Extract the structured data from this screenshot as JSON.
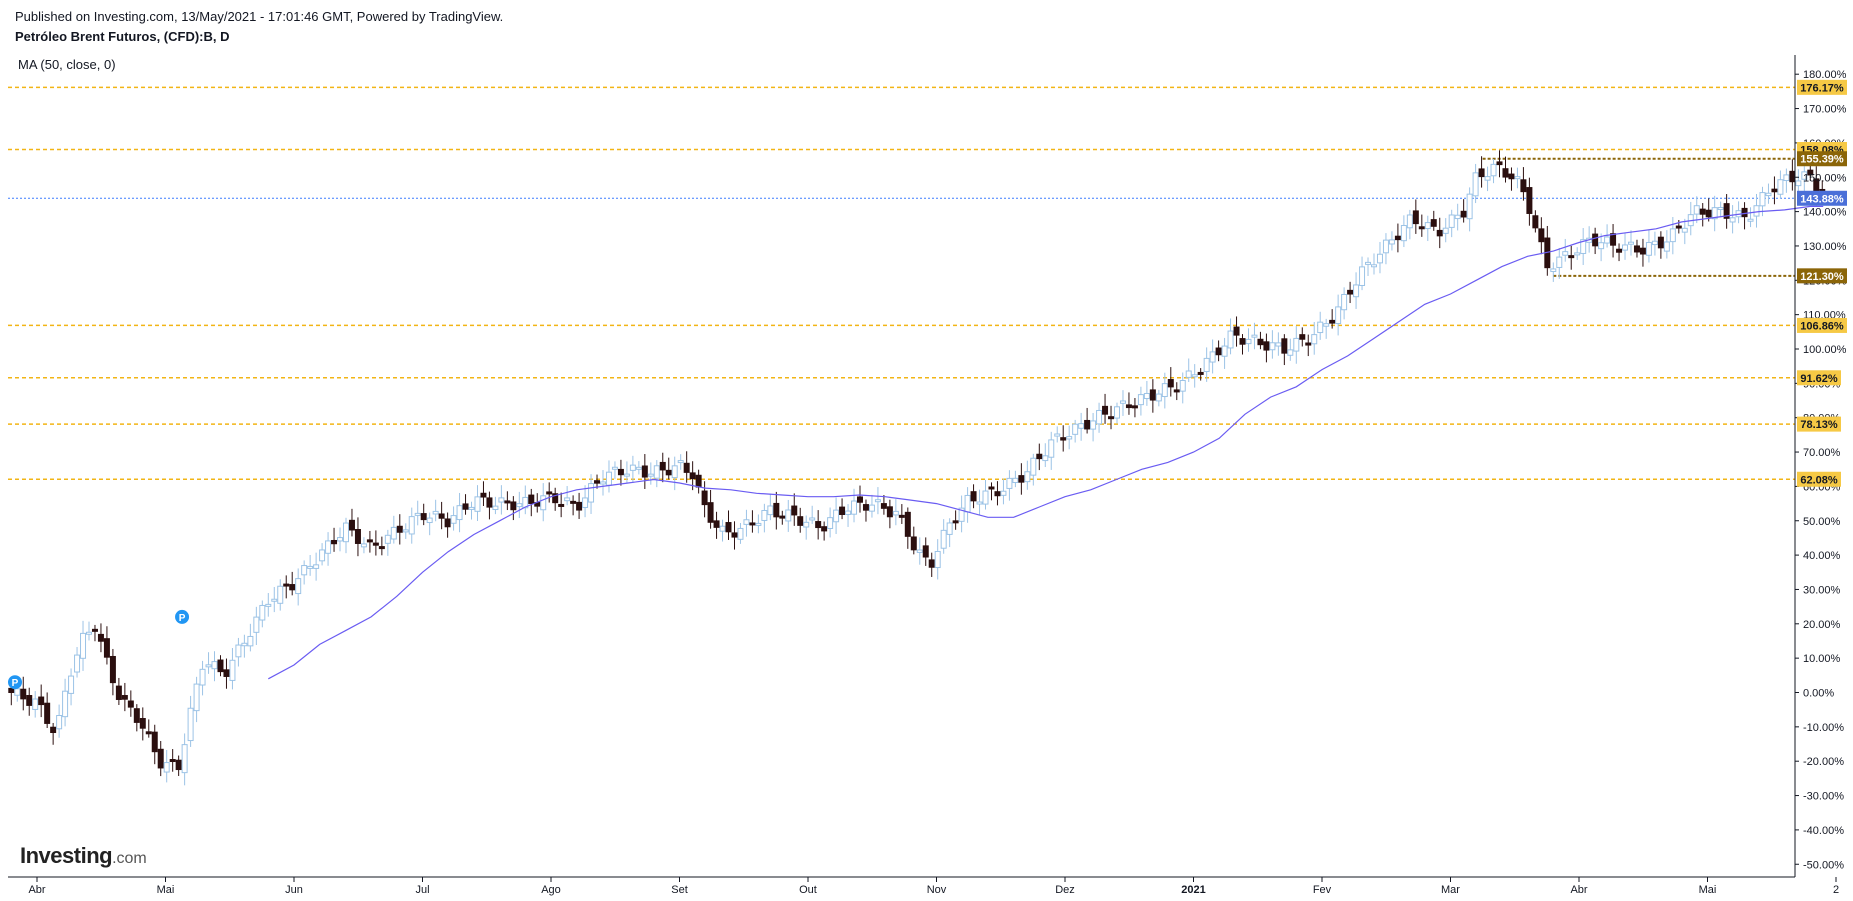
{
  "header": {
    "published": "Published on Investing.com, 13/May/2021 - 17:01:46 GMT, Powered by TradingView.",
    "title": "Petróleo Brent Futuros, (CFD):B, D",
    "indicator": "MA (50, close, 0)"
  },
  "logo": {
    "brand": "Investing",
    "suffix": ".com"
  },
  "colors": {
    "fib": "#f2b515",
    "fib_label_bg": "#f6c945",
    "range_line": "#8b6508",
    "range_label_bg": "#8b6508",
    "current": "#3d7dff",
    "current_label_bg": "#4a6fd8",
    "ma": "#6a5cf2",
    "bull_candle": "#9cc3e6",
    "bear_candle": "#2b0f0f",
    "marker": "#2196f3"
  },
  "chart_data": {
    "type": "candlestick",
    "y_axis": {
      "unit": "%",
      "ylim": [
        -55,
        185
      ],
      "ticks": [
        "180.00%",
        "170.00%",
        "160.00%",
        "150.00%",
        "140.00%",
        "130.00%",
        "120.00%",
        "110.00%",
        "100.00%",
        "90.00%",
        "80.00%",
        "70.00%",
        "60.00%",
        "50.00%",
        "40.00%",
        "30.00%",
        "20.00%",
        "10.00%",
        "0.00%",
        "-10.00%",
        "-20.00%",
        "-30.00%",
        "-40.00%",
        "-50.00%"
      ]
    },
    "x_axis": {
      "ticks": [
        "Abr",
        "Mai",
        "Jun",
        "Jul",
        "Ago",
        "Set",
        "Out",
        "Nov",
        "Dez",
        "2021",
        "Fev",
        "Mar",
        "Abr",
        "Mai",
        "2"
      ]
    },
    "levels": [
      {
        "label": "176.17%",
        "value": 176.17,
        "kind": "fib"
      },
      {
        "label": "158.08%",
        "value": 158.08,
        "kind": "fib"
      },
      {
        "label": "155.39%",
        "value": 155.39,
        "kind": "range"
      },
      {
        "label": "143.88%",
        "value": 143.88,
        "kind": "current"
      },
      {
        "label": "121.30%",
        "value": 121.3,
        "kind": "range"
      },
      {
        "label": "106.86%",
        "value": 106.86,
        "kind": "fib"
      },
      {
        "label": "91.62%",
        "value": 91.62,
        "kind": "fib"
      },
      {
        "label": "78.13%",
        "value": 78.13,
        "kind": "fib"
      },
      {
        "label": "62.08%",
        "value": 62.08,
        "kind": "fib"
      }
    ],
    "markers": [
      {
        "label": "P",
        "x": 0.0,
        "value": 3
      },
      {
        "label": "P",
        "x": 1.3,
        "value": 22
      }
    ],
    "close_series": [
      [
        -0.2,
        0
      ],
      [
        0.0,
        -3
      ],
      [
        0.15,
        -12
      ],
      [
        0.25,
        5
      ],
      [
        0.35,
        15
      ],
      [
        0.45,
        20
      ],
      [
        0.55,
        8
      ],
      [
        0.65,
        -2
      ],
      [
        0.8,
        -8
      ],
      [
        0.95,
        -20
      ],
      [
        1.1,
        -22
      ],
      [
        1.2,
        -5
      ],
      [
        1.3,
        10
      ],
      [
        1.45,
        5
      ],
      [
        1.6,
        14
      ],
      [
        1.8,
        27
      ],
      [
        2.0,
        32
      ],
      [
        2.2,
        40
      ],
      [
        2.4,
        48
      ],
      [
        2.6,
        42
      ],
      [
        2.8,
        47
      ],
      [
        3.0,
        52
      ],
      [
        3.2,
        50
      ],
      [
        3.4,
        56
      ],
      [
        3.6,
        55
      ],
      [
        3.8,
        55
      ],
      [
        4.0,
        57
      ],
      [
        4.2,
        54
      ],
      [
        4.4,
        63
      ],
      [
        4.6,
        65
      ],
      [
        4.8,
        64
      ],
      [
        5.0,
        66
      ],
      [
        5.1,
        64
      ],
      [
        5.2,
        53
      ],
      [
        5.35,
        46
      ],
      [
        5.5,
        48
      ],
      [
        5.7,
        53
      ],
      [
        5.9,
        51
      ],
      [
        6.1,
        48
      ],
      [
        6.3,
        54
      ],
      [
        6.5,
        55
      ],
      [
        6.7,
        52
      ],
      [
        6.85,
        41
      ],
      [
        6.95,
        37
      ],
      [
        7.1,
        49
      ],
      [
        7.25,
        56
      ],
      [
        7.5,
        59
      ],
      [
        7.7,
        64
      ],
      [
        7.9,
        73
      ],
      [
        8.1,
        77
      ],
      [
        8.3,
        81
      ],
      [
        8.5,
        84
      ],
      [
        8.7,
        87
      ],
      [
        8.9,
        90
      ],
      [
        9.1,
        96
      ],
      [
        9.3,
        104
      ],
      [
        9.5,
        102
      ],
      [
        9.7,
        100
      ],
      [
        9.9,
        103
      ],
      [
        10.1,
        110
      ],
      [
        10.3,
        122
      ],
      [
        10.5,
        130
      ],
      [
        10.7,
        138
      ],
      [
        10.9,
        134
      ],
      [
        11.1,
        140
      ],
      [
        11.2,
        150
      ],
      [
        11.35,
        153
      ],
      [
        11.5,
        150
      ],
      [
        11.6,
        143
      ],
      [
        11.75,
        124
      ],
      [
        11.9,
        127
      ],
      [
        12.1,
        132
      ],
      [
        12.3,
        130
      ],
      [
        12.5,
        129
      ],
      [
        12.7,
        132
      ],
      [
        12.9,
        140
      ],
      [
        13.1,
        140
      ],
      [
        13.3,
        138
      ],
      [
        13.5,
        147
      ],
      [
        13.65,
        150
      ],
      [
        13.8,
        150
      ],
      [
        13.9,
        143.88
      ]
    ],
    "ma50_series": [
      [
        1.8,
        4
      ],
      [
        2.0,
        8
      ],
      [
        2.2,
        14
      ],
      [
        2.4,
        18
      ],
      [
        2.6,
        22
      ],
      [
        2.8,
        28
      ],
      [
        3.0,
        35
      ],
      [
        3.2,
        41
      ],
      [
        3.4,
        46
      ],
      [
        3.6,
        50
      ],
      [
        3.8,
        54
      ],
      [
        4.0,
        57
      ],
      [
        4.2,
        59
      ],
      [
        4.4,
        60
      ],
      [
        4.6,
        61
      ],
      [
        4.8,
        62
      ],
      [
        5.0,
        61
      ],
      [
        5.2,
        59.5
      ],
      [
        5.4,
        59
      ],
      [
        5.6,
        58
      ],
      [
        5.8,
        57.5
      ],
      [
        6.0,
        57
      ],
      [
        6.2,
        57
      ],
      [
        6.4,
        57.5
      ],
      [
        6.6,
        57
      ],
      [
        6.8,
        56
      ],
      [
        7.0,
        55
      ],
      [
        7.2,
        53
      ],
      [
        7.4,
        51
      ],
      [
        7.6,
        51
      ],
      [
        7.8,
        54
      ],
      [
        8.0,
        57
      ],
      [
        8.2,
        59
      ],
      [
        8.4,
        62
      ],
      [
        8.6,
        65
      ],
      [
        8.8,
        67
      ],
      [
        9.0,
        70
      ],
      [
        9.2,
        74
      ],
      [
        9.4,
        81
      ],
      [
        9.6,
        86
      ],
      [
        9.8,
        89
      ],
      [
        10.0,
        94
      ],
      [
        10.2,
        98
      ],
      [
        10.4,
        103
      ],
      [
        10.6,
        108
      ],
      [
        10.8,
        113
      ],
      [
        11.0,
        116
      ],
      [
        11.2,
        120
      ],
      [
        11.4,
        124
      ],
      [
        11.6,
        127
      ],
      [
        11.8,
        128.5
      ],
      [
        12.0,
        131
      ],
      [
        12.2,
        133
      ],
      [
        12.4,
        134
      ],
      [
        12.6,
        135
      ],
      [
        12.8,
        137
      ],
      [
        13.0,
        138
      ],
      [
        13.2,
        139
      ],
      [
        13.4,
        140
      ],
      [
        13.6,
        140.5
      ],
      [
        13.8,
        141.5
      ],
      [
        13.9,
        141.5
      ]
    ]
  }
}
